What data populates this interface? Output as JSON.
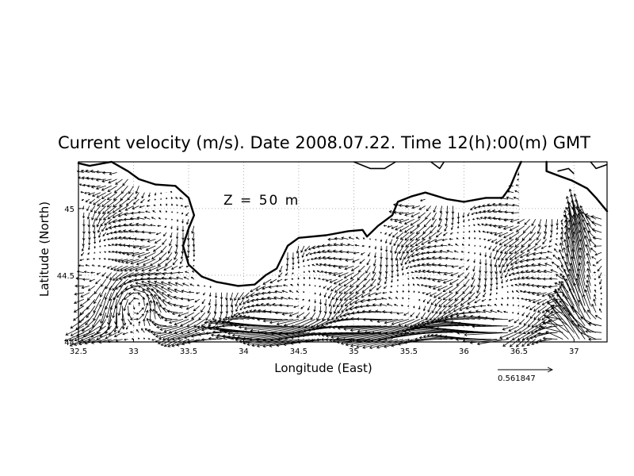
{
  "title": "Current velocity (m/s). Date 2008.07.22. Time 12(h):00(m) GMT",
  "depth_annotation": "Z  =  50  m",
  "xlabel": "Longitude (East)",
  "ylabel": "Latitude (North)",
  "x_ticks": [
    "32.5",
    "33",
    "33.5",
    "34",
    "34.5",
    "35",
    "35.5",
    "36",
    "36.5",
    "37"
  ],
  "y_ticks": [
    "44",
    "44.5",
    "45"
  ],
  "reference_vector_label": "0.561847",
  "chart_data": {
    "type": "vector-field",
    "variable": "Current velocity",
    "units": "m/s",
    "date": "2008.07.22",
    "time": "12(h):00(m) GMT",
    "depth": "50 m",
    "xlim": [
      32.5,
      37.3
    ],
    "ylim": [
      44.0,
      45.35
    ],
    "x_tick_values": [
      32.5,
      33,
      33.5,
      34,
      34.5,
      35,
      35.5,
      36,
      36.5,
      37
    ],
    "y_tick_values": [
      44,
      44.5,
      45
    ],
    "grid": true,
    "reference_vector": 0.561847,
    "vector_grid": {
      "lon_start": 32.55,
      "lon_step": 0.05,
      "lat_start": 44.02,
      "lat_step": 0.05
    },
    "coastline": [
      [
        32.5,
        45.34
      ],
      [
        32.6,
        45.32
      ],
      [
        32.8,
        45.35
      ],
      [
        32.95,
        45.28
      ],
      [
        33.05,
        45.22
      ],
      [
        33.2,
        45.18
      ],
      [
        33.38,
        45.17
      ],
      [
        33.5,
        45.08
      ],
      [
        33.55,
        44.95
      ],
      [
        33.5,
        44.85
      ],
      [
        33.45,
        44.72
      ],
      [
        33.5,
        44.58
      ],
      [
        33.62,
        44.49
      ],
      [
        33.75,
        44.45
      ],
      [
        33.95,
        44.42
      ],
      [
        34.1,
        44.43
      ],
      [
        34.2,
        44.5
      ],
      [
        34.3,
        44.55
      ],
      [
        34.4,
        44.72
      ],
      [
        34.5,
        44.78
      ],
      [
        34.75,
        44.8
      ],
      [
        34.95,
        44.83
      ],
      [
        35.08,
        44.84
      ],
      [
        35.12,
        44.79
      ],
      [
        35.22,
        44.87
      ],
      [
        35.35,
        44.95
      ],
      [
        35.4,
        45.05
      ],
      [
        35.52,
        45.09
      ],
      [
        35.65,
        45.12
      ],
      [
        35.85,
        45.07
      ],
      [
        36.0,
        45.05
      ],
      [
        36.2,
        45.08
      ],
      [
        36.35,
        45.08
      ],
      [
        36.42,
        45.16
      ],
      [
        36.48,
        45.28
      ],
      [
        36.52,
        45.35
      ]
    ],
    "coastline_east": [
      [
        36.75,
        45.35
      ],
      [
        36.75,
        45.28
      ],
      [
        36.88,
        45.24
      ],
      [
        36.98,
        45.21
      ],
      [
        37.12,
        45.15
      ],
      [
        37.2,
        45.08
      ],
      [
        37.3,
        44.98
      ]
    ],
    "coastline_north_islands": [
      [
        [
          35.0,
          45.35
        ],
        [
          35.15,
          45.3
        ],
        [
          35.28,
          45.3
        ],
        [
          35.38,
          45.35
        ]
      ],
      [
        [
          35.7,
          45.35
        ],
        [
          35.78,
          45.3
        ],
        [
          35.82,
          45.35
        ]
      ],
      [
        [
          36.85,
          45.28
        ],
        [
          36.95,
          45.3
        ],
        [
          37.0,
          45.26
        ]
      ],
      [
        [
          37.15,
          45.35
        ],
        [
          37.2,
          45.3
        ],
        [
          37.3,
          45.33
        ]
      ]
    ],
    "flow_regions": [
      {
        "region": "western open sea (32.5–33.4 E)",
        "pattern": "weak, mixed directions, cyclonic eddy near 44.3 N"
      },
      {
        "region": "south of Crimea (34–36 E, 44.0–44.2 N)",
        "pattern": "strong westward rim current"
      },
      {
        "region": "central (34.5–36.5 E, 44.3–44.7 N)",
        "pattern": "weak westward / south-westward drift"
      },
      {
        "region": "east (36.8–37.3 E)",
        "pattern": "strong meridional flow, mostly northward"
      }
    ]
  }
}
